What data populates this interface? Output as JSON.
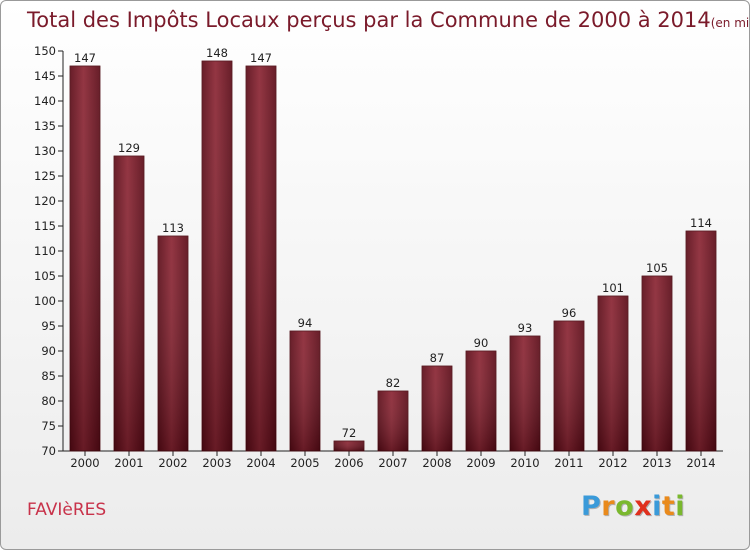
{
  "chart_data": {
    "type": "bar",
    "title": "Total des Impôts Locaux perçus par la Commune de 2000 à 2014",
    "unit_note": "(en milliers d'€)",
    "categories": [
      "2000",
      "2001",
      "2002",
      "2003",
      "2004",
      "2005",
      "2006",
      "2007",
      "2008",
      "2009",
      "2010",
      "2011",
      "2012",
      "2013",
      "2014"
    ],
    "values": [
      147,
      129,
      113,
      148,
      147,
      94,
      72,
      82,
      87,
      90,
      93,
      96,
      101,
      105,
      114
    ],
    "ylim": [
      70,
      150
    ],
    "yticks": [
      70,
      75,
      80,
      85,
      90,
      95,
      100,
      105,
      110,
      115,
      120,
      125,
      130,
      135,
      140,
      145,
      150
    ],
    "xlabel": "",
    "ylabel": "",
    "grid": false,
    "bar_color": "#6e1020"
  },
  "commune": "FAVIèRES",
  "brand": {
    "letters": [
      {
        "char": "P",
        "color": "#3a9ad9"
      },
      {
        "char": "r",
        "color": "#e98a1c"
      },
      {
        "char": "o",
        "color": "#7ab82e"
      },
      {
        "char": "x",
        "color": "#e0301e"
      },
      {
        "char": "i",
        "color": "#3a9ad9"
      },
      {
        "char": "t",
        "color": "#e98a1c"
      },
      {
        "char": "i",
        "color": "#7ab82e"
      }
    ]
  }
}
